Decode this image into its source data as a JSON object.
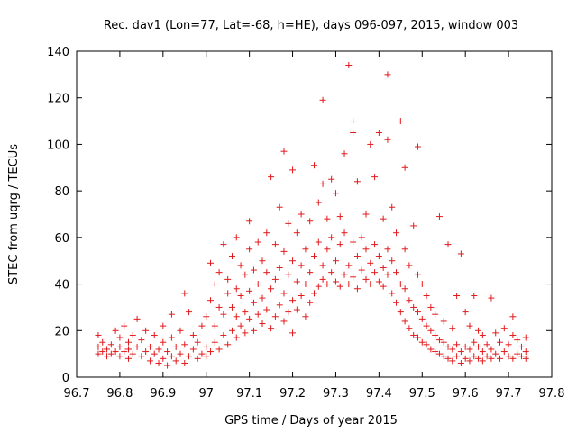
{
  "chart_data": {
    "type": "scatter",
    "title": "Rec. dav1 (Lon=77, Lat=-68, h=HE), days 096-097, 2015, window 003",
    "xlabel": "GPS time / Days of year 2015",
    "ylabel": "STEC from uqrg / TECUs",
    "xlim": [
      96.7,
      97.8
    ],
    "ylim": [
      0,
      140
    ],
    "xticks": [
      "96.7",
      "96.8",
      "96.9",
      "97",
      "97.1",
      "97.2",
      "97.3",
      "97.4",
      "97.5",
      "97.6",
      "97.7",
      "97.8"
    ],
    "yticks": [
      "0",
      "20",
      "40",
      "60",
      "80",
      "100",
      "120",
      "140"
    ],
    "grid": false,
    "marker": "plus",
    "color": "#e31a1c",
    "points": [
      [
        96.75,
        10
      ],
      [
        96.75,
        13
      ],
      [
        96.75,
        18
      ],
      [
        96.76,
        11
      ],
      [
        96.76,
        15
      ],
      [
        96.77,
        9
      ],
      [
        96.77,
        12
      ],
      [
        96.78,
        10
      ],
      [
        96.78,
        14
      ],
      [
        96.79,
        11
      ],
      [
        96.79,
        20
      ],
      [
        96.8,
        9
      ],
      [
        96.8,
        13
      ],
      [
        96.8,
        17
      ],
      [
        96.81,
        11
      ],
      [
        96.81,
        22
      ],
      [
        96.82,
        8
      ],
      [
        96.82,
        12
      ],
      [
        96.82,
        15
      ],
      [
        96.83,
        10
      ],
      [
        96.83,
        18
      ],
      [
        96.84,
        13
      ],
      [
        96.84,
        25
      ],
      [
        96.85,
        9
      ],
      [
        96.85,
        16
      ],
      [
        96.86,
        11
      ],
      [
        96.86,
        20
      ],
      [
        96.87,
        7
      ],
      [
        96.87,
        13
      ],
      [
        96.88,
        10
      ],
      [
        96.88,
        18
      ],
      [
        96.89,
        6
      ],
      [
        96.89,
        12
      ],
      [
        96.9,
        8
      ],
      [
        96.9,
        15
      ],
      [
        96.9,
        22
      ],
      [
        96.91,
        5
      ],
      [
        96.91,
        11
      ],
      [
        96.92,
        9
      ],
      [
        96.92,
        17
      ],
      [
        96.92,
        27
      ],
      [
        96.93,
        7
      ],
      [
        96.93,
        13
      ],
      [
        96.94,
        10
      ],
      [
        96.94,
        20
      ],
      [
        96.95,
        6
      ],
      [
        96.95,
        14
      ],
      [
        96.95,
        36
      ],
      [
        96.96,
        9
      ],
      [
        96.96,
        28
      ],
      [
        96.97,
        12
      ],
      [
        96.97,
        18
      ],
      [
        96.98,
        8
      ],
      [
        96.98,
        15
      ],
      [
        96.99,
        10
      ],
      [
        96.99,
        22
      ],
      [
        97.0,
        9
      ],
      [
        97.0,
        13
      ],
      [
        97.0,
        26
      ],
      [
        97.01,
        11
      ],
      [
        97.01,
        33
      ],
      [
        97.01,
        49
      ],
      [
        97.02,
        15
      ],
      [
        97.02,
        22
      ],
      [
        97.02,
        40
      ],
      [
        97.03,
        12
      ],
      [
        97.03,
        30
      ],
      [
        97.03,
        45
      ],
      [
        97.04,
        18
      ],
      [
        97.04,
        57
      ],
      [
        97.04,
        27
      ],
      [
        97.05,
        14
      ],
      [
        97.05,
        36
      ],
      [
        97.05,
        42
      ],
      [
        97.06,
        20
      ],
      [
        97.06,
        30
      ],
      [
        97.06,
        52
      ],
      [
        97.07,
        17
      ],
      [
        97.07,
        26
      ],
      [
        97.07,
        38
      ],
      [
        97.07,
        60
      ],
      [
        97.08,
        22
      ],
      [
        97.08,
        35
      ],
      [
        97.08,
        48
      ],
      [
        97.09,
        19
      ],
      [
        97.09,
        28
      ],
      [
        97.09,
        44
      ],
      [
        97.1,
        25
      ],
      [
        97.1,
        37
      ],
      [
        97.1,
        67
      ],
      [
        97.1,
        55
      ],
      [
        97.11,
        20
      ],
      [
        97.11,
        32
      ],
      [
        97.11,
        46
      ],
      [
        97.12,
        27
      ],
      [
        97.12,
        40
      ],
      [
        97.12,
        58
      ],
      [
        97.13,
        23
      ],
      [
        97.13,
        34
      ],
      [
        97.13,
        50
      ],
      [
        97.14,
        29
      ],
      [
        97.14,
        45
      ],
      [
        97.14,
        62
      ],
      [
        97.15,
        21
      ],
      [
        97.15,
        38
      ],
      [
        97.15,
        86
      ],
      [
        97.16,
        26
      ],
      [
        97.16,
        42
      ],
      [
        97.16,
        57
      ],
      [
        97.17,
        31
      ],
      [
        97.17,
        47
      ],
      [
        97.17,
        73
      ],
      [
        97.18,
        24
      ],
      [
        97.18,
        36
      ],
      [
        97.18,
        54
      ],
      [
        97.18,
        97
      ],
      [
        97.19,
        28
      ],
      [
        97.19,
        44
      ],
      [
        97.19,
        66
      ],
      [
        97.2,
        33
      ],
      [
        97.2,
        50
      ],
      [
        97.2,
        89
      ],
      [
        97.2,
        19
      ],
      [
        97.21,
        29
      ],
      [
        97.21,
        41
      ],
      [
        97.21,
        62
      ],
      [
        97.22,
        35
      ],
      [
        97.22,
        48
      ],
      [
        97.22,
        70
      ],
      [
        97.23,
        26
      ],
      [
        97.23,
        40
      ],
      [
        97.23,
        55
      ],
      [
        97.24,
        32
      ],
      [
        97.24,
        45
      ],
      [
        97.24,
        67
      ],
      [
        97.25,
        36
      ],
      [
        97.25,
        52
      ],
      [
        97.25,
        91
      ],
      [
        97.26,
        39
      ],
      [
        97.26,
        58
      ],
      [
        97.26,
        75
      ],
      [
        97.27,
        42
      ],
      [
        97.27,
        48
      ],
      [
        97.27,
        119
      ],
      [
        97.27,
        83
      ],
      [
        97.28,
        40
      ],
      [
        97.28,
        55
      ],
      [
        97.28,
        68
      ],
      [
        97.29,
        45
      ],
      [
        97.29,
        60
      ],
      [
        97.29,
        85
      ],
      [
        97.3,
        41
      ],
      [
        97.3,
        50
      ],
      [
        97.3,
        79
      ],
      [
        97.31,
        39
      ],
      [
        97.31,
        57
      ],
      [
        97.31,
        69
      ],
      [
        97.32,
        44
      ],
      [
        97.32,
        62
      ],
      [
        97.32,
        96
      ],
      [
        97.33,
        40
      ],
      [
        97.33,
        48
      ],
      [
        97.33,
        134
      ],
      [
        97.34,
        43
      ],
      [
        97.34,
        58
      ],
      [
        97.34,
        110
      ],
      [
        97.34,
        105
      ],
      [
        97.35,
        38
      ],
      [
        97.35,
        52
      ],
      [
        97.35,
        84
      ],
      [
        97.36,
        46
      ],
      [
        97.36,
        60
      ],
      [
        97.37,
        42
      ],
      [
        97.37,
        55
      ],
      [
        97.37,
        70
      ],
      [
        97.38,
        40
      ],
      [
        97.38,
        49
      ],
      [
        97.38,
        100
      ],
      [
        97.39,
        45
      ],
      [
        97.39,
        57
      ],
      [
        97.39,
        86
      ],
      [
        97.4,
        41
      ],
      [
        97.4,
        52
      ],
      [
        97.4,
        105
      ],
      [
        97.41,
        39
      ],
      [
        97.41,
        47
      ],
      [
        97.41,
        68
      ],
      [
        97.42,
        44
      ],
      [
        97.42,
        55
      ],
      [
        97.42,
        130
      ],
      [
        97.42,
        102
      ],
      [
        97.43,
        36
      ],
      [
        97.43,
        50
      ],
      [
        97.43,
        73
      ],
      [
        97.44,
        32
      ],
      [
        97.44,
        45
      ],
      [
        97.44,
        62
      ],
      [
        97.45,
        28
      ],
      [
        97.45,
        40
      ],
      [
        97.45,
        110
      ],
      [
        97.46,
        24
      ],
      [
        97.46,
        38
      ],
      [
        97.46,
        90
      ],
      [
        97.46,
        55
      ],
      [
        97.47,
        21
      ],
      [
        97.47,
        33
      ],
      [
        97.47,
        48
      ],
      [
        97.48,
        18
      ],
      [
        97.48,
        30
      ],
      [
        97.48,
        65
      ],
      [
        97.49,
        17
      ],
      [
        97.49,
        28
      ],
      [
        97.49,
        44
      ],
      [
        97.49,
        99
      ],
      [
        97.5,
        15
      ],
      [
        97.5,
        25
      ],
      [
        97.5,
        40
      ],
      [
        97.51,
        14
      ],
      [
        97.51,
        22
      ],
      [
        97.51,
        35
      ],
      [
        97.52,
        12
      ],
      [
        97.52,
        20
      ],
      [
        97.52,
        30
      ],
      [
        97.53,
        11
      ],
      [
        97.53,
        18
      ],
      [
        97.53,
        27
      ],
      [
        97.54,
        10
      ],
      [
        97.54,
        16
      ],
      [
        97.54,
        69
      ],
      [
        97.55,
        9
      ],
      [
        97.55,
        15
      ],
      [
        97.55,
        24
      ],
      [
        97.56,
        8
      ],
      [
        97.56,
        13
      ],
      [
        97.56,
        57
      ],
      [
        97.57,
        7
      ],
      [
        97.57,
        12
      ],
      [
        97.57,
        21
      ],
      [
        97.58,
        9
      ],
      [
        97.58,
        14
      ],
      [
        97.58,
        35
      ],
      [
        97.59,
        6
      ],
      [
        97.59,
        11
      ],
      [
        97.59,
        53
      ],
      [
        97.6,
        8
      ],
      [
        97.6,
        13
      ],
      [
        97.6,
        28
      ],
      [
        97.61,
        7
      ],
      [
        97.61,
        12
      ],
      [
        97.61,
        22
      ],
      [
        97.62,
        9
      ],
      [
        97.62,
        15
      ],
      [
        97.62,
        35
      ],
      [
        97.63,
        8
      ],
      [
        97.63,
        13
      ],
      [
        97.63,
        20
      ],
      [
        97.64,
        7
      ],
      [
        97.64,
        11
      ],
      [
        97.64,
        18
      ],
      [
        97.65,
        9
      ],
      [
        97.65,
        14
      ],
      [
        97.66,
        8
      ],
      [
        97.66,
        12
      ],
      [
        97.66,
        34
      ],
      [
        97.67,
        10
      ],
      [
        97.67,
        19
      ],
      [
        97.68,
        8
      ],
      [
        97.68,
        15
      ],
      [
        97.69,
        11
      ],
      [
        97.69,
        21
      ],
      [
        97.7,
        9
      ],
      [
        97.7,
        14
      ],
      [
        97.71,
        8
      ],
      [
        97.71,
        18
      ],
      [
        97.71,
        26
      ],
      [
        97.72,
        10
      ],
      [
        97.72,
        16
      ],
      [
        97.73,
        9
      ],
      [
        97.73,
        13
      ],
      [
        97.74,
        11
      ],
      [
        97.74,
        17
      ],
      [
        97.74,
        8
      ]
    ]
  }
}
